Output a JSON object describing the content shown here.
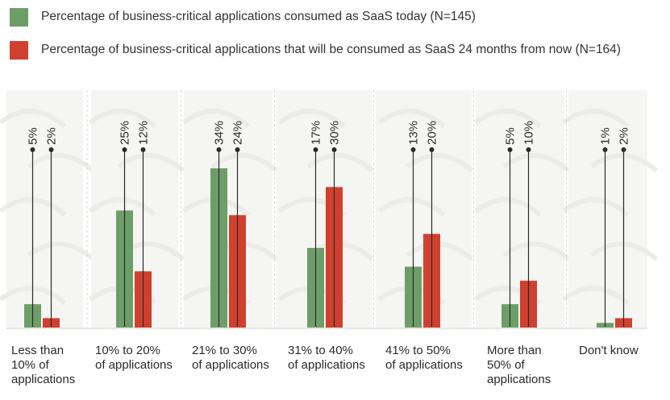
{
  "legend": [
    {
      "label": "Percentage of business-critical applications consumed as SaaS today (N=145)",
      "color": "#6e9e68"
    },
    {
      "label": "Percentage of business-critical applications that will be consumed as SaaS 24 months from now (N=164)",
      "color": "#d0402e"
    }
  ],
  "chart_data": {
    "type": "bar",
    "categories": [
      [
        "Less than",
        "10% of",
        "applications"
      ],
      [
        "10% to 20%",
        "of applications"
      ],
      [
        "21% to 30%",
        "of applications"
      ],
      [
        "31% to 40%",
        "of applications"
      ],
      [
        "41% to 50%",
        "of applications"
      ],
      [
        "More than",
        "50% of",
        "applications"
      ],
      [
        "Don't know"
      ]
    ],
    "series": [
      {
        "name": "Percentage of business-critical applications consumed as SaaS today (N=145)",
        "color": "#6e9e68",
        "values": [
          5,
          25,
          34,
          17,
          13,
          5,
          1
        ],
        "labels": [
          "5%",
          "25%",
          "34%",
          "17%",
          "13%",
          "5%",
          "1%"
        ]
      },
      {
        "name": "Percentage of business-critical applications that will be consumed as SaaS 24 months from now (N=164)",
        "color": "#d0402e",
        "values": [
          2,
          12,
          24,
          30,
          20,
          10,
          2
        ],
        "labels": [
          "2%",
          "12%",
          "24%",
          "30%",
          "20%",
          "10%",
          "2%"
        ]
      }
    ],
    "ylim": [
      0,
      40
    ],
    "bar_value_scale_note": "",
    "grid": false,
    "legend_position": "top-left"
  }
}
